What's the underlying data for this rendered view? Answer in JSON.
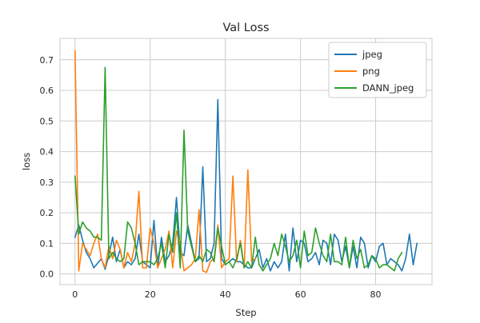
{
  "chart_data": {
    "type": "line",
    "title": "Val Loss",
    "xlabel": "Step",
    "ylabel": "loss",
    "xlim": [
      -4,
      95
    ],
    "ylim": [
      -0.035,
      0.77
    ],
    "xticks": [
      0,
      20,
      40,
      60,
      80
    ],
    "yticks": [
      0.0,
      0.1,
      0.2,
      0.3,
      0.4,
      0.5,
      0.6,
      0.7
    ],
    "xtick_labels": [
      "0",
      "20",
      "40",
      "60",
      "80"
    ],
    "ytick_labels": [
      "0.0",
      "0.1",
      "0.2",
      "0.3",
      "0.4",
      "0.5",
      "0.6",
      "0.7"
    ],
    "grid": true,
    "legend_position": "top-right",
    "series": [
      {
        "name": "jpeg",
        "color": "#1f77b4",
        "values": [
          0.12,
          0.16,
          0.11,
          0.07,
          0.05,
          0.02,
          0.035,
          0.05,
          0.015,
          0.06,
          0.12,
          0.04,
          0.08,
          0.02,
          0.04,
          0.03,
          0.05,
          0.13,
          0.04,
          0.03,
          0.02,
          0.175,
          0.02,
          0.12,
          0.04,
          0.06,
          0.1,
          0.25,
          0.07,
          0.06,
          0.16,
          0.1,
          0.04,
          0.05,
          0.35,
          0.04,
          0.05,
          0.1,
          0.57,
          0.05,
          0.03,
          0.04,
          0.05,
          0.04,
          0.04,
          0.03,
          0.02,
          0.02,
          0.05,
          0.08,
          0.02,
          0.05,
          0.01,
          0.04,
          0.02,
          0.04,
          0.13,
          0.01,
          0.15,
          0.04,
          0.11,
          0.1,
          0.04,
          0.05,
          0.07,
          0.03,
          0.11,
          0.1,
          0.03,
          0.13,
          0.11,
          0.04,
          0.09,
          0.02,
          0.09,
          0.02,
          0.12,
          0.1,
          0.02,
          0.06,
          0.04,
          0.09,
          0.1,
          0.03,
          0.05,
          0.04,
          0.03,
          0.01,
          0.05,
          0.13,
          0.03,
          0.1
        ]
      },
      {
        "name": "png",
        "color": "#ff7f0e",
        "values": [
          0.73,
          0.01,
          0.1,
          0.08,
          0.06,
          0.1,
          0.13,
          0.05,
          0.02,
          0.09,
          0.05,
          0.11,
          0.08,
          0.02,
          0.07,
          0.04,
          0.1,
          0.27,
          0.02,
          0.02,
          0.15,
          0.1,
          0.02,
          0.05,
          0.08,
          0.14,
          0.02,
          0.14,
          0.1,
          0.01,
          0.02,
          0.03,
          0.05,
          0.21,
          0.01,
          0.005,
          0.04,
          0.05,
          0.16,
          0.02,
          0.04,
          0.05,
          0.32,
          0.04,
          0.11,
          0.02,
          0.34,
          0.04,
          0.05
        ]
      },
      {
        "name": "DANN_jpeg",
        "color": "#2ca02c",
        "values": [
          0.32,
          0.13,
          0.17,
          0.15,
          0.14,
          0.12,
          0.12,
          0.11,
          0.675,
          0.05,
          0.07,
          0.05,
          0.04,
          0.05,
          0.17,
          0.15,
          0.1,
          0.03,
          0.04,
          0.04,
          0.04,
          0.03,
          0.05,
          0.1,
          0.02,
          0.13,
          0.07,
          0.2,
          0.02,
          0.47,
          0.14,
          0.09,
          0.04,
          0.06,
          0.04,
          0.08,
          0.07,
          0.04,
          0.15,
          0.09,
          0.03,
          0.04,
          0.02,
          0.05,
          0.1,
          0.02,
          0.04,
          0.02,
          0.12,
          0.03,
          0.01,
          0.03,
          0.05,
          0.1,
          0.06,
          0.13,
          0.09,
          0.04,
          0.06,
          0.11,
          0.02,
          0.14,
          0.06,
          0.07,
          0.15,
          0.1,
          0.06,
          0.04,
          0.13,
          0.04,
          0.04,
          0.03,
          0.12,
          0.02,
          0.11,
          0.05,
          0.08,
          0.02,
          0.03,
          0.06,
          0.05,
          0.02,
          0.03,
          0.03,
          0.02,
          0.01,
          0.05,
          0.07
        ]
      }
    ]
  }
}
